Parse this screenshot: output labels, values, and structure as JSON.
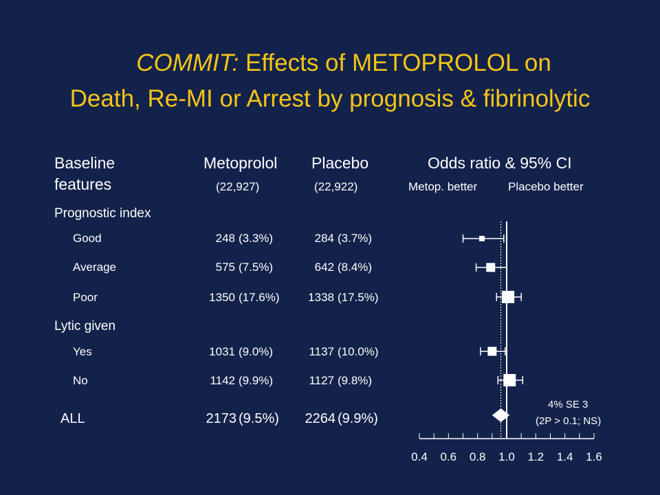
{
  "title": {
    "italic": "COMMIT:",
    "line1_rest": " Effects of METOPROLOL on",
    "line2": "Death, Re-MI or Arrest by prognosis & fibrinolytic"
  },
  "headers": {
    "baseline": "Baseline",
    "features": "features",
    "metoprolol": "Metoprolol",
    "metoprolol_n": "(22,927)",
    "placebo": "Placebo",
    "placebo_n": "(22,922)",
    "odds": "Odds ratio & 95% CI",
    "metop_better": "Metop. better",
    "placebo_better": "Placebo better"
  },
  "sections": {
    "prognostic": "Prognostic index",
    "lytic": "Lytic given"
  },
  "rows": [
    {
      "label": "Good",
      "metop_n": "248",
      "metop_pct": "(3.3%)",
      "plac_n": "284",
      "plac_pct": "(3.7%)"
    },
    {
      "label": "Average",
      "metop_n": "575",
      "metop_pct": "(7.5%)",
      "plac_n": "642",
      "plac_pct": "(8.4%)"
    },
    {
      "label": "Poor",
      "metop_n": "1350",
      "metop_pct": "(17.6%)",
      "plac_n": "1338",
      "plac_pct": "(17.5%)"
    },
    {
      "label": "Yes",
      "metop_n": "1031",
      "metop_pct": "(9.0%)",
      "plac_n": "1137",
      "plac_pct": "(10.0%)"
    },
    {
      "label": "No",
      "metop_n": "1142",
      "metop_pct": "(9.9%)",
      "plac_n": "1127",
      "plac_pct": "(9.8%)"
    },
    {
      "label": "ALL",
      "metop_n": "2173",
      "metop_pct": "(9.5%)",
      "plac_n": "2264",
      "plac_pct": "(9.9%)"
    }
  ],
  "annotation": {
    "line1": "4% SE 3",
    "line2": "(2P > 0.1; NS)"
  },
  "chart_data": {
    "type": "forest",
    "xlabel": "",
    "xlim": [
      0.4,
      1.6
    ],
    "xticks": [
      "0.4",
      "0.6",
      "0.8",
      "1.0",
      "1.2",
      "1.4",
      "1.6"
    ],
    "reference_line": 1.0,
    "overall_line": 0.96,
    "points": [
      {
        "label": "Good",
        "or": 0.83,
        "lo": 0.7,
        "hi": 0.98,
        "marker": "square-small"
      },
      {
        "label": "Average",
        "or": 0.89,
        "lo": 0.79,
        "hi": 1.0,
        "marker": "square"
      },
      {
        "label": "Poor",
        "or": 1.01,
        "lo": 0.93,
        "hi": 1.1,
        "marker": "square-large"
      },
      {
        "label": "Yes",
        "or": 0.9,
        "lo": 0.82,
        "hi": 0.99,
        "marker": "square"
      },
      {
        "label": "No",
        "or": 1.02,
        "lo": 0.94,
        "hi": 1.11,
        "marker": "square-large"
      },
      {
        "label": "ALL",
        "or": 0.96,
        "lo": 0.9,
        "hi": 1.02,
        "marker": "diamond"
      }
    ],
    "colors": {
      "background": "#13224a",
      "title": "#f5c518",
      "marks": "#ffffff"
    }
  }
}
